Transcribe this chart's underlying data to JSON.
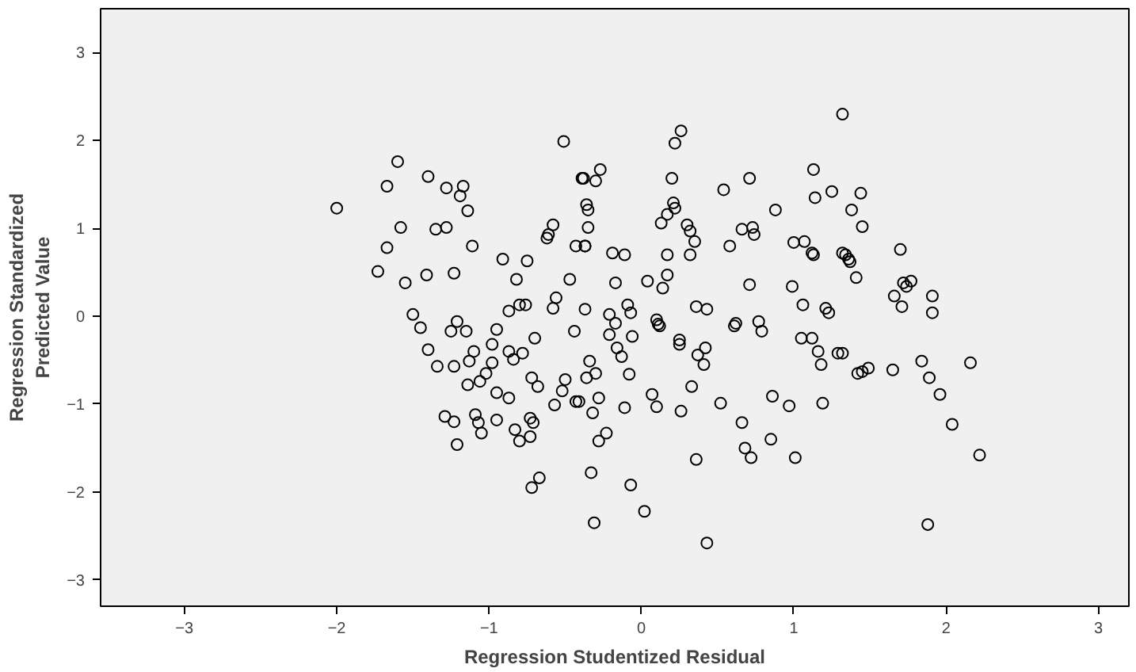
{
  "chart_data": {
    "type": "scatter",
    "xlabel": "Regression Studentized Residual",
    "ylabel": "Regression Standardized Predicted Value",
    "xlim": [
      -3.55,
      3.2
    ],
    "ylim": [
      -3.3,
      3.5
    ],
    "xticks": [
      -3,
      -2,
      -1,
      0,
      1,
      2,
      3
    ],
    "yticks": [
      -3,
      -2,
      -1,
      0,
      1,
      2,
      3
    ],
    "grid": false,
    "marker": "circle",
    "series": [
      {
        "color": "#000000",
        "x": [
          1.44,
          1.38,
          1.45,
          1.7,
          1.34,
          1.37,
          1.41,
          1.72,
          1.74,
          1.77,
          1.66,
          1.71,
          1.91,
          1.91,
          1.32,
          1.32,
          1.45,
          1.49,
          1.65,
          1.84,
          1.89,
          1.96,
          2.04,
          2.16,
          2.22,
          1.88,
          0.26,
          0.22,
          -0.27,
          -0.38,
          -0.3,
          0.2,
          0.54,
          0.71,
          1.13,
          1.25,
          1.14,
          -0.36,
          -0.35,
          0.21,
          0.22,
          0.17,
          0.13,
          0.88,
          0.3,
          0.32,
          0.35,
          -0.35,
          -0.37,
          -0.19,
          -0.11,
          0.17,
          0.32,
          0.58,
          0.66,
          0.73,
          0.74,
          1.0,
          1.07,
          1.12,
          1.13,
          1.32,
          1.36,
          0.17,
          0.14,
          0.04,
          -0.17,
          0.71,
          0.99,
          1.06,
          1.21,
          1.23,
          -0.37,
          -0.21,
          -0.17,
          -0.09,
          -0.07,
          0.1,
          0.11,
          0.36,
          0.43,
          0.62,
          0.77,
          0.79,
          1.05,
          1.12,
          0.25,
          -0.06,
          -0.34,
          -0.36,
          -0.3,
          -0.16,
          -0.13,
          -0.21,
          -0.08,
          0.25,
          0.37,
          0.42,
          0.41,
          0.33,
          0.07,
          0.1,
          0.26,
          -0.11,
          -0.28,
          -0.32,
          -0.41,
          0.52,
          0.86,
          0.97,
          1.19,
          0.66,
          0.85,
          0.68,
          0.72,
          1.01,
          0.36,
          -0.23,
          -0.28,
          -0.33,
          -0.07,
          0.02,
          -0.31,
          0.43,
          1.16,
          1.18,
          1.29,
          1.42,
          0.12,
          0.61,
          -0.51,
          -1.6,
          -2.0,
          -1.67,
          -1.4,
          -1.28,
          -1.17,
          -1.19,
          -1.14,
          -1.58,
          -1.35,
          -1.28,
          -1.67,
          -1.11,
          -1.73,
          -1.55,
          -1.41,
          -1.23,
          -0.91,
          -0.75,
          -0.82,
          -0.47,
          -0.58,
          -0.61,
          -0.62,
          -0.43,
          -0.37,
          -0.39,
          -1.5,
          -1.45,
          -1.21,
          -1.25,
          -1.15,
          -0.95,
          -0.87,
          -0.8,
          -0.76,
          -0.7,
          -0.58,
          -0.56,
          -0.44,
          -1.4,
          -1.34,
          -1.23,
          -1.13,
          -1.1,
          -1.14,
          -1.06,
          -1.02,
          -0.98,
          -0.98,
          -0.87,
          -0.84,
          -0.78,
          -0.95,
          -0.87,
          -1.29,
          -1.23,
          -1.21,
          -1.09,
          -1.07,
          -1.05,
          -0.95,
          -0.83,
          -0.8,
          -0.73,
          -0.73,
          -0.71,
          -0.72,
          -0.68,
          -0.57,
          -0.52,
          -0.5,
          -0.43,
          -0.72,
          -0.67
        ],
        "values": [
          1.4,
          1.21,
          1.02,
          0.76,
          0.7,
          0.62,
          0.44,
          0.38,
          0.34,
          0.4,
          0.23,
          0.11,
          0.23,
          0.04,
          2.3,
          -0.42,
          -0.63,
          -0.59,
          -0.61,
          -0.51,
          -0.7,
          -0.89,
          -1.23,
          -0.53,
          -1.58,
          -2.37,
          2.11,
          1.97,
          1.67,
          1.57,
          1.54,
          1.57,
          1.44,
          1.57,
          1.67,
          1.42,
          1.35,
          1.27,
          1.21,
          1.29,
          1.23,
          1.16,
          1.06,
          1.21,
          1.04,
          0.97,
          0.85,
          1.01,
          0.8,
          0.72,
          0.7,
          0.7,
          0.7,
          0.8,
          0.99,
          1.01,
          0.93,
          0.84,
          0.85,
          0.72,
          0.7,
          0.72,
          0.65,
          0.47,
          0.32,
          0.4,
          0.38,
          0.36,
          0.34,
          0.13,
          0.09,
          0.04,
          0.08,
          0.02,
          -0.08,
          0.13,
          0.04,
          -0.04,
          -0.09,
          0.11,
          0.08,
          -0.08,
          -0.06,
          -0.17,
          -0.25,
          -0.25,
          -0.27,
          -0.23,
          -0.51,
          -0.7,
          -0.65,
          -0.36,
          -0.46,
          -0.21,
          -0.66,
          -0.32,
          -0.44,
          -0.36,
          -0.55,
          -0.8,
          -0.89,
          -1.03,
          -1.08,
          -1.04,
          -0.93,
          -1.1,
          -0.97,
          -0.99,
          -0.91,
          -1.02,
          -0.99,
          -1.21,
          -1.4,
          -1.5,
          -1.61,
          -1.61,
          -1.63,
          -1.33,
          -1.42,
          -1.78,
          -1.92,
          -2.22,
          -2.35,
          -2.58,
          -0.4,
          -0.55,
          -0.42,
          -0.65,
          -0.11,
          -0.11,
          1.99,
          1.76,
          1.23,
          1.48,
          1.59,
          1.46,
          1.48,
          1.37,
          1.2,
          1.01,
          0.99,
          1.01,
          0.78,
          0.8,
          0.51,
          0.38,
          0.47,
          0.49,
          0.65,
          0.63,
          0.42,
          0.42,
          1.04,
          0.93,
          0.89,
          0.8,
          0.8,
          1.57,
          0.02,
          -0.13,
          -0.06,
          -0.17,
          -0.17,
          -0.15,
          0.06,
          0.13,
          0.13,
          -0.25,
          0.09,
          0.21,
          -0.17,
          -0.38,
          -0.57,
          -0.57,
          -0.51,
          -0.4,
          -0.78,
          -0.74,
          -0.65,
          -0.53,
          -0.32,
          -0.4,
          -0.49,
          -0.42,
          -0.87,
          -0.93,
          -1.14,
          -1.2,
          -1.46,
          -1.12,
          -1.21,
          -1.33,
          -1.18,
          -1.29,
          -1.42,
          -1.37,
          -1.16,
          -1.21,
          -0.7,
          -0.8,
          -1.01,
          -0.85,
          -0.72,
          -0.97,
          -1.95,
          -1.84
        ]
      }
    ]
  }
}
